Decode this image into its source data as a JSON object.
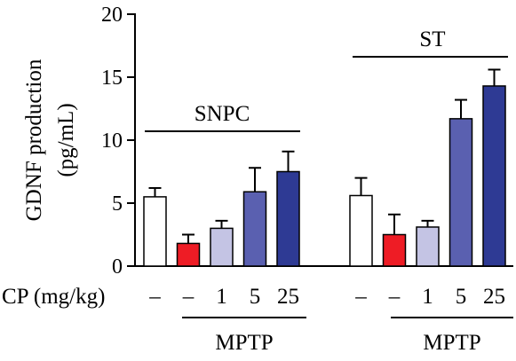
{
  "chart_data": {
    "type": "bar",
    "ylabel_lines": [
      "GDNF production",
      "(pg/mL)"
    ],
    "ylim": [
      0,
      20
    ],
    "yticks": [
      0,
      5,
      10,
      15,
      20
    ],
    "row_label": "CP (mg/kg)",
    "categories": [
      "–",
      "–",
      "1",
      "5",
      "25"
    ],
    "groups": [
      {
        "name": "SNPC",
        "values": [
          5.5,
          1.8,
          3.0,
          5.9,
          7.5
        ],
        "errors": [
          0.7,
          0.7,
          0.6,
          1.9,
          1.6
        ],
        "colors": [
          "#ffffff",
          "#ee1c25",
          "#c4c4e4",
          "#5a60b0",
          "#2e3a94"
        ],
        "treatment_label": "MPTP"
      },
      {
        "name": "ST",
        "values": [
          5.6,
          2.5,
          3.1,
          11.7,
          14.3
        ],
        "errors": [
          1.4,
          1.6,
          0.5,
          1.5,
          1.3
        ],
        "colors": [
          "#ffffff",
          "#ee1c25",
          "#c4c4e4",
          "#5a60b0",
          "#2e3a94"
        ],
        "treatment_label": "MPTP"
      }
    ]
  }
}
